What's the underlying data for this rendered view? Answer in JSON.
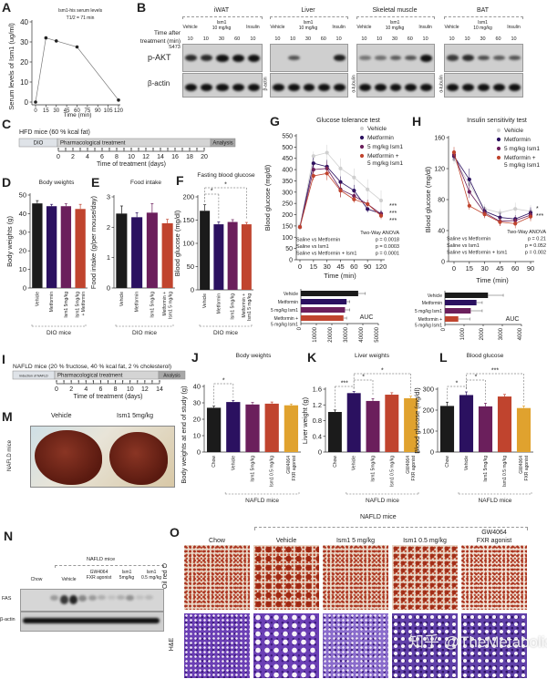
{
  "panel_labels": {
    "A": "A",
    "B": "B",
    "C": "C",
    "D": "D",
    "E": "E",
    "F": "F",
    "G": "G",
    "H": "H",
    "I": "I",
    "J": "J",
    "K": "K",
    "L": "L",
    "M": "M",
    "N": "N",
    "O": "O"
  },
  "watermark": "知乎 @TheMetabolist",
  "blot_B": {
    "time_label_1": "Time after",
    "time_label_2": "treatment (min)",
    "phospho_site": "S473",
    "rows": [
      "p-AKT",
      "β-actin"
    ],
    "groups": [
      "Vehicle",
      "Ism1\n10 mg/kg",
      "Insulin"
    ],
    "lanes": [
      "10",
      "10",
      "30",
      "60",
      "10"
    ],
    "tissues": [
      {
        "name": "iWAT",
        "loading": ""
      },
      {
        "name": "Liver",
        "loading": "β-actin"
      },
      {
        "name": "Skeletal muscle",
        "loading": "α-tubulin"
      },
      {
        "name": "BAT",
        "loading": "α-tubulin"
      }
    ]
  },
  "timeline_C": {
    "title": "HFD mice (60 % kcal fat)",
    "segments": [
      "DIO",
      "Pharmacological treatment",
      "Analysis"
    ],
    "ticks": [
      0,
      2,
      4,
      6,
      8,
      10,
      12,
      14,
      16,
      18,
      20
    ],
    "xlabel": "Time of treatment (days)"
  },
  "timeline_I": {
    "title": "NAFLD mice (20 % fructose, 40 % kcal fat, 2 % cholesterol)",
    "segments": [
      "Induction of NAFLD",
      "Pharmacological treatment",
      "Analysis"
    ],
    "ticks": [
      0,
      2,
      4,
      6,
      8,
      10,
      12,
      14
    ],
    "xlabel": "Time of treatment (days)"
  },
  "photo_M": {
    "cols": [
      "Vehicle",
      "Ism1 5mg/kg"
    ],
    "row": "NAFLD mice"
  },
  "blot_N": {
    "group": "NAFLD mice",
    "lanes": [
      "Chow",
      "Vehicle",
      "GW4064\nFXR agonist",
      "Ism1\n5mg/kg",
      "Ism1\n0.5 mg/kg"
    ],
    "rows": [
      "FAS",
      "β-actin"
    ]
  },
  "histology_O": {
    "group": "NAFLD mice",
    "cols": [
      "Chow",
      "Vehicle",
      "Ism1 5 mg/kg",
      "Ism1 0.5 mg/kg",
      "GW4064\nFXR agonist"
    ],
    "rows": [
      "Oil red O",
      "H&E"
    ]
  },
  "chart_data": [
    {
      "id": "A",
      "type": "line",
      "title": "Ism1-his serum levels",
      "subtitle": "T1/2 = 71 min",
      "xlabel": "Time (min)",
      "ylabel": "Serum levels of Ism1 (ug/ml)",
      "x": [
        0,
        15,
        30,
        60,
        120
      ],
      "y": [
        0,
        32,
        30.5,
        27.5,
        1
      ],
      "xlim": [
        0,
        120
      ],
      "ylim": [
        0,
        40
      ],
      "xticks": [
        0,
        15,
        30,
        45,
        60,
        75,
        90,
        105,
        120
      ],
      "yticks": [
        0,
        10,
        20,
        30,
        40
      ],
      "color": "#222222"
    },
    {
      "id": "D",
      "type": "bar",
      "title": "Body weights",
      "ylabel": "Body weights (g)",
      "categories": [
        "Vehicle",
        "Metformin",
        "Ism1 5mg/kg",
        "Ism1 5mg/kg\n+ Metformin"
      ],
      "values": [
        45.5,
        44,
        44,
        42.5
      ],
      "errors": [
        1.5,
        1,
        1.3,
        2.5
      ],
      "colors": [
        "#1b1b1b",
        "#2b1160",
        "#6b1f5c",
        "#c0442e"
      ],
      "ylim": [
        0,
        50
      ],
      "yticks": [
        0,
        10,
        20,
        30,
        40,
        50
      ],
      "group": "DIO mice",
      "group_range": [
        0,
        3
      ],
      "significance": []
    },
    {
      "id": "E",
      "type": "bar",
      "title": "Food intake",
      "ylabel": "Food intake (g/per mouse/day)",
      "categories": [
        "Vehicle",
        "Metformin",
        "Ism1 5mg/kg",
        "Metformin +\nIsm1 5 mg/kg"
      ],
      "values": [
        2.45,
        2.33,
        2.48,
        2.13
      ],
      "errors": [
        0.25,
        0.15,
        0.3,
        0.13
      ],
      "colors": [
        "#1b1b1b",
        "#2b1160",
        "#6b1f5c",
        "#c0442e"
      ],
      "ylim": [
        0,
        3
      ],
      "yticks": [
        0,
        1,
        2,
        3
      ],
      "group": "DIO mice",
      "group_range": [
        0,
        3
      ],
      "significance": []
    },
    {
      "id": "F",
      "type": "bar",
      "title": "Fasting blood glucose",
      "ylabel": "Blood glucose (mg/dl)",
      "categories": [
        "Vehicle",
        "Metformin",
        "Ism1 5mg/kg",
        "Metformin +\nIsm1 5 mg/kg"
      ],
      "values": [
        170,
        141,
        146,
        141
      ],
      "errors": [
        13,
        5,
        5,
        4
      ],
      "colors": [
        "#1b1b1b",
        "#2b1160",
        "#6b1f5c",
        "#c0442e"
      ],
      "ylim": [
        0,
        200
      ],
      "yticks": [
        0,
        50,
        100,
        150,
        200
      ],
      "group": "DIO mice",
      "group_range": [
        0,
        3
      ],
      "significance": [
        {
          "from": 0,
          "to": 1,
          "label": "*"
        },
        {
          "from": 0,
          "to": 3,
          "label": "*"
        }
      ]
    },
    {
      "id": "G",
      "type": "line",
      "title": "Glucose tolerance test",
      "xlabel": "Time (min)",
      "ylabel": "Blood glucose (mg/dl)",
      "x": [
        0,
        15,
        30,
        45,
        60,
        90,
        120
      ],
      "ylim": [
        0,
        550
      ],
      "yticks": [
        0,
        50,
        100,
        150,
        200,
        250,
        300,
        350,
        400,
        450,
        500,
        550
      ],
      "series": [
        {
          "name": "Vehicle",
          "color": "#cfcfcf",
          "values": [
            150,
            460,
            475,
            405,
            365,
            312,
            263
          ],
          "errors": [
            15,
            20,
            35,
            45,
            40,
            45,
            45
          ]
        },
        {
          "name": "Metformin",
          "color": "#2b1160",
          "values": [
            145,
            428,
            413,
            345,
            307,
            225,
            205
          ],
          "errors": [
            8,
            25,
            30,
            25,
            25,
            15,
            15
          ]
        },
        {
          "name": "5 mg/kg Ism1",
          "color": "#6b1f5c",
          "values": [
            145,
            400,
            405,
            312,
            283,
            247,
            203
          ],
          "errors": [
            8,
            25,
            30,
            35,
            25,
            20,
            15
          ]
        },
        {
          "name": "Metformin +\n5 mg/kg Ism1",
          "color": "#c0442e",
          "values": [
            145,
            372,
            383,
            307,
            268,
            247,
            195
          ],
          "errors": [
            8,
            20,
            30,
            30,
            15,
            15,
            15
          ]
        }
      ],
      "stats_title": "Two-Way ANOVA",
      "stats": [
        [
          "Saline  vs  Metformin",
          "p = 0.0018"
        ],
        [
          "Saline  vs  Ism1",
          "p = 0.0003"
        ],
        [
          "Saline  vs  Metformin + Ism1",
          "p = 0.0001"
        ]
      ],
      "end_marks": [
        "***",
        "***",
        "***"
      ]
    },
    {
      "id": "G-AUC",
      "type": "hbar",
      "label": "AUC",
      "categories": [
        "Vehicle",
        "Metformin",
        "5 mg/kg Ism1",
        "Metformin +\n5 mg/kg Ism1"
      ],
      "values": [
        37000,
        29500,
        28500,
        27500
      ],
      "errors": [
        4500,
        2000,
        3000,
        2000
      ],
      "colors": [
        "#1b1b1b",
        "#2b1160",
        "#6b1f5c",
        "#c0442e"
      ],
      "xlim": [
        0,
        50000
      ],
      "xticks": [
        0,
        10000,
        20000,
        30000,
        40000,
        50000
      ]
    },
    {
      "id": "H",
      "type": "line",
      "title": "Insulin sensitivity test",
      "xlabel": "Time (min)",
      "ylabel": "Blood glucose (mg/dl)",
      "x": [
        0,
        15,
        30,
        45,
        60,
        90
      ],
      "ylim": [
        0,
        160
      ],
      "yticks": [
        0,
        40,
        80,
        120,
        160
      ],
      "series": [
        {
          "name": "Vehicle",
          "color": "#cfcfcf",
          "values": [
            132,
            100,
            68,
            63,
            68,
            65
          ],
          "errors": [
            6,
            8,
            6,
            5,
            8,
            8
          ]
        },
        {
          "name": "Metformin",
          "color": "#2b1160",
          "values": [
            136,
            106,
            65,
            57,
            55,
            63
          ],
          "errors": [
            6,
            14,
            6,
            6,
            5,
            7
          ]
        },
        {
          "name": "5 mg/kg Ism1",
          "color": "#6b1f5c",
          "values": [
            138,
            90,
            63,
            52,
            53,
            60
          ],
          "errors": [
            6,
            8,
            6,
            6,
            6,
            6
          ]
        },
        {
          "name": "Metformin +\n5 mg/kg Ism1",
          "color": "#c0442e",
          "values": [
            141,
            72,
            61,
            51,
            49,
            58
          ],
          "errors": [
            7,
            5,
            5,
            5,
            6,
            6
          ]
        }
      ],
      "stats_title": "Two-Way ANOVA",
      "stats": [
        [
          "Saline  vs  Metformin",
          "p = 0.21"
        ],
        [
          "Saline  vs  Ism1",
          "p = 0.052"
        ],
        [
          "Saline  vs  Metformin + Ism1",
          "p = 0.002"
        ]
      ],
      "end_marks": [
        "*",
        "***"
      ]
    },
    {
      "id": "H-AUC",
      "type": "hbar",
      "label": "AUC",
      "categories": [
        "Vehicle",
        "Metformin",
        "5 mg/kg Ism1",
        "Metformin +\n5 mg/kg Ism1"
      ],
      "values": [
        2250,
        1650,
        1350,
        700
      ],
      "errors": [
        800,
        300,
        600,
        600
      ],
      "colors": [
        "#1b1b1b",
        "#2b1160",
        "#6b1f5c",
        "#c0442e"
      ],
      "xlim": [
        0,
        4000
      ],
      "xticks": [
        0,
        1000,
        2000,
        3000,
        4000
      ]
    },
    {
      "id": "J",
      "type": "bar",
      "title": "Body weights",
      "ylabel": "Body weights at end of study (g)",
      "categories": [
        "Chow",
        "Vehicle",
        "Ism1 5mg/kg",
        "Ism1 0.5 mg/kg",
        "GW4064\nFXR agonist"
      ],
      "values": [
        27,
        30.5,
        29,
        29.5,
        28.5
      ],
      "errors": [
        1,
        1,
        1.2,
        1,
        0.8
      ],
      "colors": [
        "#1b1b1b",
        "#2b1160",
        "#6b1f5c",
        "#c0442e",
        "#e0a22e"
      ],
      "ylim": [
        0,
        40
      ],
      "yticks": [
        0,
        10,
        20,
        30,
        40
      ],
      "group": "NAFLD mice",
      "group_range": [
        1,
        4
      ],
      "significance": [
        {
          "from": 0,
          "to": 1,
          "label": "*"
        }
      ]
    },
    {
      "id": "K",
      "type": "bar",
      "title": "Liver weights",
      "ylabel": "Liver weight (g)",
      "categories": [
        "Chow",
        "Vehicle",
        "Ism1 5mg/kg",
        "Ism1 0.5 mg/kg",
        "GW4064\nFXR agonist"
      ],
      "values": [
        1.02,
        1.5,
        1.3,
        1.46,
        1.37
      ],
      "errors": [
        0.05,
        0.04,
        0.06,
        0.05,
        0.05
      ],
      "colors": [
        "#1b1b1b",
        "#2b1160",
        "#6b1f5c",
        "#c0442e",
        "#e0a22e"
      ],
      "ylim": [
        0,
        1.6
      ],
      "yticks": [
        0,
        0.4,
        0.8,
        1.2,
        1.6
      ],
      "group": "NAFLD mice",
      "group_range": [
        1,
        4
      ],
      "significance": [
        {
          "from": 0,
          "to": 1,
          "label": "***"
        },
        {
          "from": 1,
          "to": 2,
          "label": "*"
        },
        {
          "from": 1,
          "to": 4,
          "label": "*"
        }
      ]
    },
    {
      "id": "L",
      "type": "bar",
      "title": "Blood glucose",
      "ylabel": "Blood glucose (mg/dl)",
      "categories": [
        "Chow",
        "Vehicle",
        "Ism1 5mg/kg",
        "Ism1 0.5 mg/kg",
        "GW4064\nFXR agonist"
      ],
      "values": [
        220,
        272,
        218,
        265,
        210
      ],
      "errors": [
        18,
        15,
        15,
        10,
        10
      ],
      "colors": [
        "#1b1b1b",
        "#2b1160",
        "#6b1f5c",
        "#c0442e",
        "#e0a22e"
      ],
      "ylim": [
        0,
        300
      ],
      "yticks": [
        0,
        100,
        200,
        300
      ],
      "group": "NAFLD mice",
      "group_range": [
        1,
        4
      ],
      "significance": [
        {
          "from": 0,
          "to": 1,
          "label": "*"
        },
        {
          "from": 1,
          "to": 2,
          "label": "*"
        },
        {
          "from": 1,
          "to": 4,
          "label": "***"
        }
      ]
    }
  ]
}
